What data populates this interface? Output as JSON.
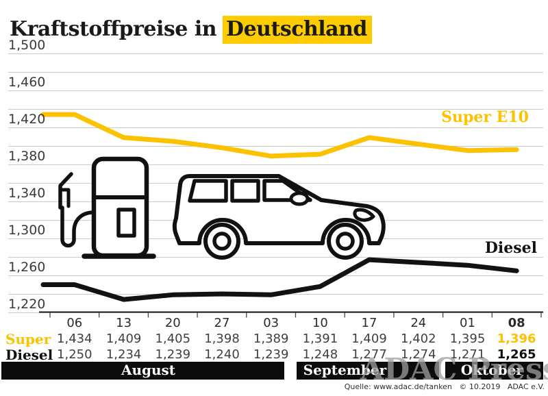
{
  "title": {
    "prefix": "Kraftstoffpreise in",
    "highlight": "Deutschland"
  },
  "colors": {
    "accent_yellow": "#FFCC00",
    "super_line": "#FCC200",
    "diesel_line": "#121212",
    "grid": "#CBCBCB"
  },
  "chart_data": {
    "type": "line",
    "title": "Kraftstoffpreise in Deutschland",
    "unit": "EUR per liter",
    "x_dates": [
      "06",
      "13",
      "20",
      "27",
      "03",
      "10",
      "17",
      "24",
      "01",
      "08"
    ],
    "x_months": [
      "August",
      "August",
      "August",
      "August",
      "September",
      "September",
      "September",
      "September",
      "Oktober",
      "Oktober"
    ],
    "y_axis": {
      "min": 1.22,
      "max": 1.5,
      "grid_step": 0.02,
      "label_step": 0.04,
      "tick_labels": [
        "1,500",
        "1,460",
        "1,420",
        "1,380",
        "1,340",
        "1,300",
        "1,260",
        "1,220"
      ]
    },
    "grid": true,
    "legend_position": "inline-right",
    "series": [
      {
        "name": "Super E10",
        "color": "#FCC200",
        "values": [
          1.434,
          1.409,
          1.405,
          1.398,
          1.389,
          1.391,
          1.409,
          1.402,
          1.395,
          1.396
        ]
      },
      {
        "name": "Diesel",
        "color": "#121212",
        "values": [
          1.25,
          1.234,
          1.239,
          1.24,
          1.239,
          1.248,
          1.277,
          1.274,
          1.271,
          1.265
        ]
      }
    ]
  },
  "chart_labels": {
    "super": "Super E10",
    "diesel": "Diesel"
  },
  "table": {
    "dates": [
      "06",
      "13",
      "20",
      "27",
      "03",
      "10",
      "17",
      "24",
      "01",
      "08"
    ],
    "rows": [
      {
        "label": "Super",
        "values": [
          "1,434",
          "1,409",
          "1,405",
          "1,398",
          "1,389",
          "1,391",
          "1,409",
          "1,402",
          "1,395",
          "1,396"
        ]
      },
      {
        "label": "Diesel",
        "values": [
          "1,250",
          "1,234",
          "1,239",
          "1,240",
          "1,239",
          "1,248",
          "1,277",
          "1,274",
          "1,271",
          "1,265"
        ]
      }
    ],
    "last_column_bold": true
  },
  "months": [
    {
      "label": "August"
    },
    {
      "label": "September"
    },
    {
      "label": "Oktober"
    }
  ],
  "footer": {
    "watermark": "ADAC Presse",
    "source": "Quelle: www.adac.de/tanken   © 10.2019   ADAC e.V."
  }
}
